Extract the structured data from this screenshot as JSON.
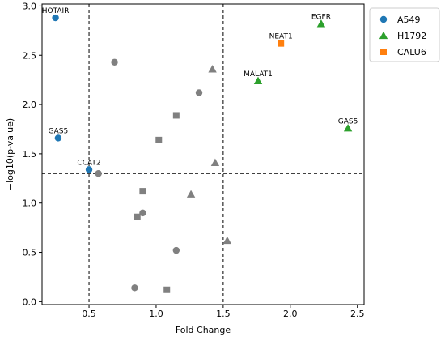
{
  "chart_data": {
    "type": "scatter",
    "xlabel": "Fold Change",
    "ylabel": "−log10(p-value)",
    "xlim": [
      0.15,
      2.55
    ],
    "ylim": [
      -0.03,
      3.02
    ],
    "xticks": [
      0.5,
      1.0,
      1.5,
      2.0,
      2.5
    ],
    "xtick_labels": [
      "0.5",
      "1.0",
      "1.5",
      "2.0",
      "2.5"
    ],
    "yticks": [
      0.0,
      0.5,
      1.0,
      1.5,
      2.0,
      2.5,
      3.0
    ],
    "ytick_labels": [
      "0.0",
      "0.5",
      "1.0",
      "1.5",
      "2.0",
      "2.5",
      "3.0"
    ],
    "thresholds": {
      "x": [
        0.5,
        1.5
      ],
      "y": [
        1.3
      ]
    },
    "legend_position": "outside-right",
    "grid": false,
    "series": [
      {
        "name": "A549",
        "marker": "circle",
        "color": "#1f77b4",
        "points": [
          {
            "x": 0.25,
            "y": 2.88,
            "label": "HOTAIR"
          },
          {
            "x": 0.27,
            "y": 1.66,
            "label": "GAS5"
          },
          {
            "x": 0.5,
            "y": 1.34,
            "label": "CCAT2"
          }
        ]
      },
      {
        "name": "H1792",
        "marker": "triangle",
        "color": "#2ca02c",
        "points": [
          {
            "x": 2.23,
            "y": 2.82,
            "label": "EGFR"
          },
          {
            "x": 1.76,
            "y": 2.24,
            "label": "MALAT1"
          },
          {
            "x": 2.43,
            "y": 1.76,
            "label": "GAS5"
          }
        ]
      },
      {
        "name": "CALU6",
        "marker": "square",
        "color": "#ff7f0e",
        "points": [
          {
            "x": 1.93,
            "y": 2.62,
            "label": "NEAT1"
          }
        ]
      }
    ],
    "non_significant": {
      "color": "#808080",
      "points": [
        {
          "x": 0.57,
          "y": 1.3,
          "marker": "circle"
        },
        {
          "x": 0.69,
          "y": 2.43,
          "marker": "circle"
        },
        {
          "x": 1.32,
          "y": 2.12,
          "marker": "circle"
        },
        {
          "x": 0.9,
          "y": 0.9,
          "marker": "circle"
        },
        {
          "x": 1.15,
          "y": 0.52,
          "marker": "circle"
        },
        {
          "x": 0.84,
          "y": 0.14,
          "marker": "circle"
        },
        {
          "x": 1.42,
          "y": 2.36,
          "marker": "triangle"
        },
        {
          "x": 1.44,
          "y": 1.41,
          "marker": "triangle"
        },
        {
          "x": 1.26,
          "y": 1.09,
          "marker": "triangle"
        },
        {
          "x": 1.53,
          "y": 0.62,
          "marker": "triangle"
        },
        {
          "x": 1.15,
          "y": 1.89,
          "marker": "square"
        },
        {
          "x": 1.02,
          "y": 1.64,
          "marker": "square"
        },
        {
          "x": 0.9,
          "y": 1.12,
          "marker": "square"
        },
        {
          "x": 0.86,
          "y": 0.86,
          "marker": "square"
        },
        {
          "x": 1.08,
          "y": 0.12,
          "marker": "square"
        }
      ]
    }
  }
}
